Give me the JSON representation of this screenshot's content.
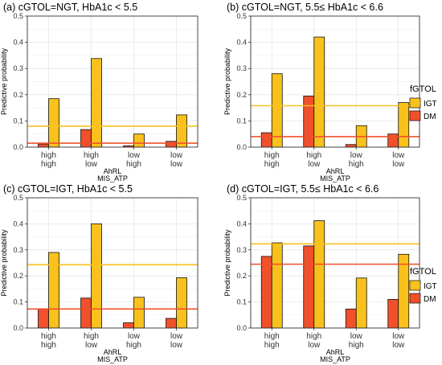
{
  "chart_data": [
    {
      "type": "bar",
      "title": "(a) cGTOL=NGT, HbA1c < 5.5",
      "ylabel": "Predictive probability",
      "xlabel_lines": [
        "AhRL",
        "MIS_ATP"
      ],
      "categories": [
        [
          "high",
          "high"
        ],
        [
          "high",
          "low"
        ],
        [
          "low",
          "high"
        ],
        [
          "low",
          "low"
        ]
      ],
      "ylim": [
        0,
        0.5
      ],
      "yticks": [
        "0.0",
        "0.1",
        "0.2",
        "0.3",
        "0.4",
        "0.5"
      ],
      "series": [
        {
          "name": "DM",
          "values": [
            0.012,
            0.067,
            0.005,
            0.022
          ]
        },
        {
          "name": "IGT",
          "values": [
            0.185,
            0.338,
            0.05,
            0.123
          ]
        }
      ],
      "hlines": {
        "IGT": 0.08,
        "DM": 0.015
      }
    },
    {
      "type": "bar",
      "title": "(b) cGTOL=NGT, 5.5≤ HbA1c < 6.6",
      "ylabel": "Predictive probability",
      "xlabel_lines": [
        "AhRL",
        "MIS_ATP"
      ],
      "categories": [
        [
          "high",
          "high"
        ],
        [
          "high",
          "low"
        ],
        [
          "low",
          "high"
        ],
        [
          "low",
          "low"
        ]
      ],
      "ylim": [
        0,
        0.5
      ],
      "yticks": [
        "0.0",
        "0.1",
        "0.2",
        "0.3",
        "0.4",
        "0.5"
      ],
      "series": [
        {
          "name": "DM",
          "values": [
            0.055,
            0.195,
            0.01,
            0.05
          ]
        },
        {
          "name": "IGT",
          "values": [
            0.28,
            0.42,
            0.082,
            0.17
          ]
        }
      ],
      "hlines": {
        "IGT": 0.158,
        "DM": 0.04
      }
    },
    {
      "type": "bar",
      "title": "(c) cGTOL=IGT,  HbA1c < 5.5",
      "ylabel": "Predictive probability",
      "xlabel_lines": [
        "AhRL",
        "MIS_ATP"
      ],
      "categories": [
        [
          "high",
          "high"
        ],
        [
          "high",
          "low"
        ],
        [
          "low",
          "high"
        ],
        [
          "low",
          "low"
        ]
      ],
      "ylim": [
        0,
        0.5
      ],
      "yticks": [
        "0.0",
        "0.1",
        "0.2",
        "0.3",
        "0.4",
        "0.5"
      ],
      "series": [
        {
          "name": "DM",
          "values": [
            0.073,
            0.115,
            0.02,
            0.037
          ]
        },
        {
          "name": "IGT",
          "values": [
            0.29,
            0.4,
            0.118,
            0.193
          ]
        }
      ],
      "hlines": {
        "IGT": 0.243,
        "DM": 0.073
      }
    },
    {
      "type": "bar",
      "title": "(d) cGTOL=IGT, 5.5≤ HbA1c < 6.6",
      "ylabel": "Predictive probability",
      "xlabel_lines": [
        "AhRL",
        "MIS_ATP"
      ],
      "categories": [
        [
          "high",
          "high"
        ],
        [
          "high",
          "low"
        ],
        [
          "low",
          "high"
        ],
        [
          "low",
          "low"
        ]
      ],
      "ylim": [
        0,
        0.5
      ],
      "yticks": [
        "0.0",
        "0.1",
        "0.2",
        "0.3",
        "0.4",
        "0.5"
      ],
      "series": [
        {
          "name": "DM",
          "values": [
            0.275,
            0.315,
            0.073,
            0.11
          ]
        },
        {
          "name": "IGT",
          "values": [
            0.327,
            0.412,
            0.192,
            0.283
          ]
        }
      ],
      "hlines": {
        "IGT": 0.323,
        "DM": 0.245
      }
    }
  ],
  "legends": [
    {
      "title": "fGTOL",
      "items": [
        "IGT",
        "DM"
      ]
    },
    {
      "title": "fGTOL",
      "items": [
        "IGT",
        "DM"
      ]
    }
  ],
  "colors": {
    "IGT": "#F9C11C",
    "DM": "#F0502B",
    "IGT_line": "#F9C11C",
    "DM_line": "#F0502B",
    "grid": "#E6E6E6",
    "panel_border": "#333333"
  }
}
